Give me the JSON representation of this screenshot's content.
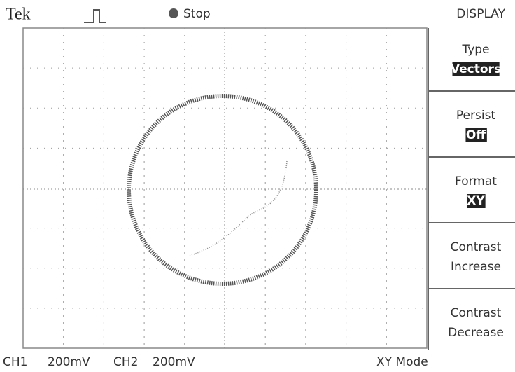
{
  "header": {
    "brand": "Tek",
    "status": "Stop",
    "menu_title": "DISPLAY"
  },
  "menu": [
    {
      "label": "Type",
      "value": "Vectors"
    },
    {
      "label": "Persist",
      "value": "Off"
    },
    {
      "label": "Format",
      "value": "XY"
    },
    {
      "label": "Contrast",
      "value": "Increase"
    },
    {
      "label": "Contrast",
      "value": "Decrease"
    }
  ],
  "footer": {
    "ch1": "CH1",
    "ch1_scale": "200mV",
    "ch2": "CH2",
    "ch2_scale": "200mV",
    "mode": "XY Mode"
  }
}
